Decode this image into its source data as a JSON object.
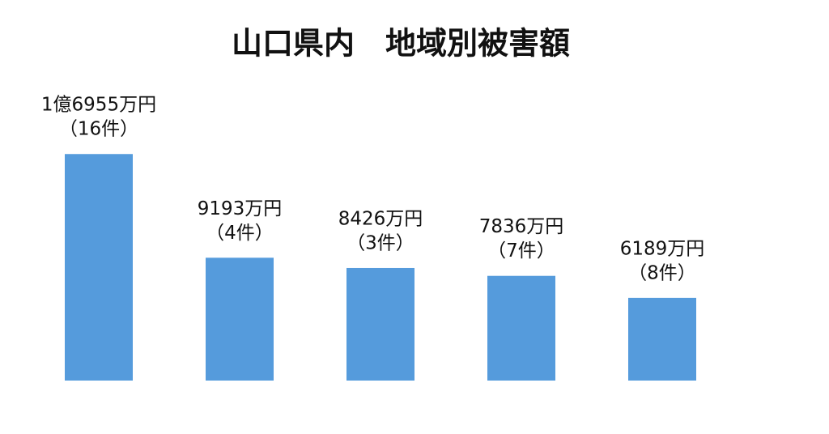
{
  "chart_data": {
    "type": "bar",
    "title": "山口県内　地域別被害額",
    "values": [
      16955,
      9193,
      8426,
      7836,
      6189
    ],
    "value_labels": [
      "1億6955万円",
      "9193万円",
      "8426万円",
      "7836万円",
      "6189万円"
    ],
    "count_labels": [
      "（16件）",
      "（4件）",
      "（3件）",
      "（7件）",
      "（8件）"
    ],
    "color": "#559bdc",
    "ylim": [
      0,
      20000
    ]
  }
}
